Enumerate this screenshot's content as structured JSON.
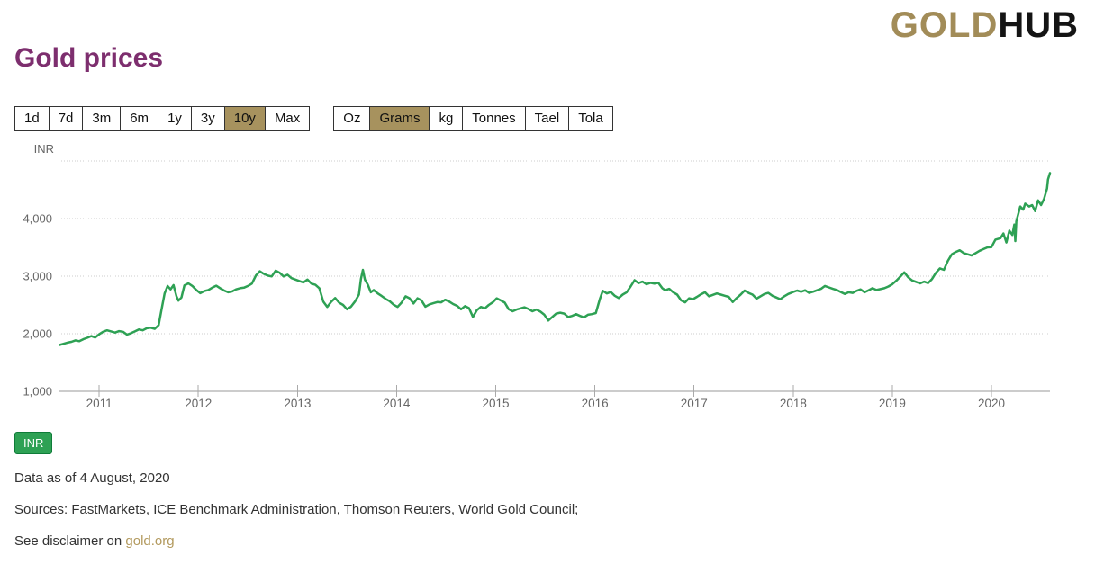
{
  "header": {
    "title": "Gold prices",
    "logo": {
      "gold": "GOLD",
      "hub": "HUB"
    }
  },
  "toolbar": {
    "range_buttons": [
      {
        "label": "1d",
        "selected": false
      },
      {
        "label": "7d",
        "selected": false
      },
      {
        "label": "3m",
        "selected": false
      },
      {
        "label": "6m",
        "selected": false
      },
      {
        "label": "1y",
        "selected": false
      },
      {
        "label": "3y",
        "selected": false
      },
      {
        "label": "10y",
        "selected": true
      },
      {
        "label": "Max",
        "selected": false
      }
    ],
    "unit_buttons": [
      {
        "label": "Oz",
        "selected": false
      },
      {
        "label": "Grams",
        "selected": true
      },
      {
        "label": "kg",
        "selected": false
      },
      {
        "label": "Tonnes",
        "selected": false
      },
      {
        "label": "Tael",
        "selected": false
      },
      {
        "label": "Tola",
        "selected": false
      }
    ]
  },
  "legend": {
    "label": "INR"
  },
  "footer": {
    "data_as_of": "Data as of 4 August, 2020",
    "sources": "Sources: FastMarkets, ICE Benchmark Administration, Thomson Reuters, World Gold Council;",
    "disclaimer_prefix": "See disclaimer on ",
    "disclaimer_link": "gold.org"
  },
  "colors": {
    "title_purple": "#7D2E6E",
    "accent_tan": "#A7925E",
    "logo_gold": "#A28C58",
    "line_green": "#2EA154",
    "badge_green": "#2EA154",
    "link_gold": "#B2995D",
    "axis_text": "#666666",
    "gridline": "#cccccc",
    "axis_line": "#999999"
  },
  "chart_data": {
    "type": "line",
    "title": "Gold prices",
    "currency_label": "INR",
    "unit": "INR per gram",
    "legend_position": "bottom-left",
    "grid": "dotted horizontal",
    "x_axis": {
      "range": [
        2010.59,
        2020.59
      ],
      "ticks": [
        2011,
        2012,
        2013,
        2014,
        2015,
        2016,
        2017,
        2018,
        2019,
        2020
      ]
    },
    "y_axis": {
      "range": [
        1000,
        5375
      ],
      "tick_values": [
        1000,
        2000,
        3000,
        4000
      ],
      "tick_labels": [
        "1,000",
        "2,000",
        "3,000",
        "4,000"
      ],
      "gridline_values": [
        2000,
        3000,
        4000,
        5000
      ]
    },
    "series": [
      {
        "name": "INR",
        "color": "#2EA154",
        "points": [
          [
            2010.6,
            1805
          ],
          [
            2010.64,
            1825
          ],
          [
            2010.68,
            1845
          ],
          [
            2010.72,
            1860
          ],
          [
            2010.76,
            1885
          ],
          [
            2010.8,
            1870
          ],
          [
            2010.84,
            1905
          ],
          [
            2010.88,
            1930
          ],
          [
            2010.92,
            1960
          ],
          [
            2010.96,
            1935
          ],
          [
            2011.0,
            1990
          ],
          [
            2011.04,
            2035
          ],
          [
            2011.08,
            2060
          ],
          [
            2011.12,
            2040
          ],
          [
            2011.16,
            2020
          ],
          [
            2011.2,
            2045
          ],
          [
            2011.24,
            2035
          ],
          [
            2011.28,
            1985
          ],
          [
            2011.32,
            2010
          ],
          [
            2011.36,
            2040
          ],
          [
            2011.4,
            2075
          ],
          [
            2011.44,
            2060
          ],
          [
            2011.48,
            2095
          ],
          [
            2011.52,
            2105
          ],
          [
            2011.56,
            2085
          ],
          [
            2011.6,
            2150
          ],
          [
            2011.63,
            2430
          ],
          [
            2011.66,
            2700
          ],
          [
            2011.69,
            2830
          ],
          [
            2011.72,
            2770
          ],
          [
            2011.75,
            2845
          ],
          [
            2011.78,
            2650
          ],
          [
            2011.8,
            2575
          ],
          [
            2011.83,
            2630
          ],
          [
            2011.86,
            2840
          ],
          [
            2011.9,
            2875
          ],
          [
            2011.94,
            2830
          ],
          [
            2011.98,
            2760
          ],
          [
            2012.02,
            2705
          ],
          [
            2012.06,
            2740
          ],
          [
            2012.1,
            2760
          ],
          [
            2012.14,
            2800
          ],
          [
            2012.18,
            2835
          ],
          [
            2012.22,
            2790
          ],
          [
            2012.26,
            2750
          ],
          [
            2012.3,
            2720
          ],
          [
            2012.34,
            2735
          ],
          [
            2012.38,
            2770
          ],
          [
            2012.42,
            2790
          ],
          [
            2012.46,
            2800
          ],
          [
            2012.5,
            2830
          ],
          [
            2012.54,
            2870
          ],
          [
            2012.58,
            3010
          ],
          [
            2012.62,
            3085
          ],
          [
            2012.66,
            3040
          ],
          [
            2012.7,
            3010
          ],
          [
            2012.74,
            2995
          ],
          [
            2012.78,
            3095
          ],
          [
            2012.82,
            3060
          ],
          [
            2012.86,
            2995
          ],
          [
            2012.9,
            3025
          ],
          [
            2012.94,
            2965
          ],
          [
            2012.98,
            2940
          ],
          [
            2013.02,
            2915
          ],
          [
            2013.06,
            2890
          ],
          [
            2013.1,
            2940
          ],
          [
            2013.14,
            2870
          ],
          [
            2013.18,
            2850
          ],
          [
            2013.22,
            2790
          ],
          [
            2013.26,
            2560
          ],
          [
            2013.3,
            2465
          ],
          [
            2013.34,
            2555
          ],
          [
            2013.38,
            2620
          ],
          [
            2013.42,
            2540
          ],
          [
            2013.46,
            2500
          ],
          [
            2013.5,
            2425
          ],
          [
            2013.54,
            2470
          ],
          [
            2013.58,
            2560
          ],
          [
            2013.62,
            2680
          ],
          [
            2013.64,
            2950
          ],
          [
            2013.66,
            3110
          ],
          [
            2013.68,
            2940
          ],
          [
            2013.71,
            2850
          ],
          [
            2013.74,
            2720
          ],
          [
            2013.77,
            2760
          ],
          [
            2013.81,
            2700
          ],
          [
            2013.85,
            2655
          ],
          [
            2013.89,
            2605
          ],
          [
            2013.93,
            2565
          ],
          [
            2013.97,
            2505
          ],
          [
            2014.01,
            2465
          ],
          [
            2014.05,
            2540
          ],
          [
            2014.09,
            2650
          ],
          [
            2014.13,
            2615
          ],
          [
            2014.17,
            2525
          ],
          [
            2014.21,
            2615
          ],
          [
            2014.25,
            2580
          ],
          [
            2014.29,
            2470
          ],
          [
            2014.33,
            2510
          ],
          [
            2014.37,
            2530
          ],
          [
            2014.41,
            2550
          ],
          [
            2014.45,
            2545
          ],
          [
            2014.49,
            2590
          ],
          [
            2014.53,
            2560
          ],
          [
            2014.57,
            2515
          ],
          [
            2014.61,
            2485
          ],
          [
            2014.65,
            2425
          ],
          [
            2014.69,
            2480
          ],
          [
            2014.73,
            2445
          ],
          [
            2014.77,
            2290
          ],
          [
            2014.81,
            2410
          ],
          [
            2014.85,
            2465
          ],
          [
            2014.89,
            2440
          ],
          [
            2014.93,
            2500
          ],
          [
            2014.97,
            2545
          ],
          [
            2015.01,
            2615
          ],
          [
            2015.05,
            2580
          ],
          [
            2015.09,
            2540
          ],
          [
            2015.13,
            2425
          ],
          [
            2015.17,
            2390
          ],
          [
            2015.21,
            2420
          ],
          [
            2015.25,
            2440
          ],
          [
            2015.29,
            2460
          ],
          [
            2015.33,
            2430
          ],
          [
            2015.37,
            2390
          ],
          [
            2015.41,
            2420
          ],
          [
            2015.45,
            2385
          ],
          [
            2015.49,
            2330
          ],
          [
            2015.53,
            2230
          ],
          [
            2015.57,
            2290
          ],
          [
            2015.61,
            2350
          ],
          [
            2015.65,
            2365
          ],
          [
            2015.69,
            2350
          ],
          [
            2015.73,
            2290
          ],
          [
            2015.77,
            2310
          ],
          [
            2015.81,
            2340
          ],
          [
            2015.85,
            2310
          ],
          [
            2015.89,
            2285
          ],
          [
            2015.93,
            2330
          ],
          [
            2015.97,
            2340
          ],
          [
            2016.01,
            2360
          ],
          [
            2016.05,
            2600
          ],
          [
            2016.08,
            2745
          ],
          [
            2016.12,
            2700
          ],
          [
            2016.16,
            2725
          ],
          [
            2016.2,
            2660
          ],
          [
            2016.24,
            2620
          ],
          [
            2016.28,
            2680
          ],
          [
            2016.32,
            2720
          ],
          [
            2016.36,
            2820
          ],
          [
            2016.4,
            2930
          ],
          [
            2016.44,
            2880
          ],
          [
            2016.48,
            2905
          ],
          [
            2016.52,
            2860
          ],
          [
            2016.56,
            2885
          ],
          [
            2016.6,
            2870
          ],
          [
            2016.64,
            2885
          ],
          [
            2016.68,
            2790
          ],
          [
            2016.71,
            2755
          ],
          [
            2016.75,
            2780
          ],
          [
            2016.79,
            2720
          ],
          [
            2016.83,
            2680
          ],
          [
            2016.87,
            2580
          ],
          [
            2016.91,
            2545
          ],
          [
            2016.95,
            2615
          ],
          [
            2016.99,
            2600
          ],
          [
            2017.03,
            2640
          ],
          [
            2017.07,
            2685
          ],
          [
            2017.11,
            2720
          ],
          [
            2017.15,
            2650
          ],
          [
            2017.19,
            2675
          ],
          [
            2017.23,
            2700
          ],
          [
            2017.27,
            2680
          ],
          [
            2017.31,
            2660
          ],
          [
            2017.35,
            2640
          ],
          [
            2017.39,
            2550
          ],
          [
            2017.43,
            2620
          ],
          [
            2017.47,
            2680
          ],
          [
            2017.51,
            2750
          ],
          [
            2017.55,
            2710
          ],
          [
            2017.59,
            2680
          ],
          [
            2017.63,
            2610
          ],
          [
            2017.67,
            2650
          ],
          [
            2017.71,
            2690
          ],
          [
            2017.75,
            2710
          ],
          [
            2017.79,
            2660
          ],
          [
            2017.83,
            2630
          ],
          [
            2017.87,
            2600
          ],
          [
            2017.91,
            2650
          ],
          [
            2017.95,
            2690
          ],
          [
            2018.0,
            2725
          ],
          [
            2018.04,
            2750
          ],
          [
            2018.08,
            2730
          ],
          [
            2018.12,
            2755
          ],
          [
            2018.16,
            2710
          ],
          [
            2018.2,
            2730
          ],
          [
            2018.24,
            2755
          ],
          [
            2018.28,
            2780
          ],
          [
            2018.32,
            2830
          ],
          [
            2018.36,
            2805
          ],
          [
            2018.4,
            2780
          ],
          [
            2018.44,
            2760
          ],
          [
            2018.48,
            2725
          ],
          [
            2018.52,
            2690
          ],
          [
            2018.56,
            2720
          ],
          [
            2018.6,
            2710
          ],
          [
            2018.64,
            2745
          ],
          [
            2018.68,
            2770
          ],
          [
            2018.72,
            2720
          ],
          [
            2018.76,
            2755
          ],
          [
            2018.8,
            2790
          ],
          [
            2018.84,
            2760
          ],
          [
            2018.88,
            2775
          ],
          [
            2018.92,
            2790
          ],
          [
            2018.96,
            2820
          ],
          [
            2019.0,
            2860
          ],
          [
            2019.04,
            2920
          ],
          [
            2019.08,
            2990
          ],
          [
            2019.12,
            3065
          ],
          [
            2019.16,
            2980
          ],
          [
            2019.2,
            2925
          ],
          [
            2019.24,
            2900
          ],
          [
            2019.28,
            2875
          ],
          [
            2019.32,
            2905
          ],
          [
            2019.36,
            2880
          ],
          [
            2019.4,
            2950
          ],
          [
            2019.44,
            3060
          ],
          [
            2019.48,
            3135
          ],
          [
            2019.52,
            3110
          ],
          [
            2019.56,
            3265
          ],
          [
            2019.6,
            3380
          ],
          [
            2019.64,
            3420
          ],
          [
            2019.68,
            3450
          ],
          [
            2019.72,
            3400
          ],
          [
            2019.76,
            3380
          ],
          [
            2019.8,
            3360
          ],
          [
            2019.84,
            3400
          ],
          [
            2019.88,
            3440
          ],
          [
            2019.92,
            3470
          ],
          [
            2019.96,
            3500
          ],
          [
            2020.0,
            3505
          ],
          [
            2020.04,
            3635
          ],
          [
            2020.09,
            3660
          ],
          [
            2020.12,
            3740
          ],
          [
            2020.15,
            3585
          ],
          [
            2020.18,
            3790
          ],
          [
            2020.21,
            3715
          ],
          [
            2020.23,
            3895
          ],
          [
            2020.24,
            3610
          ],
          [
            2020.25,
            3950
          ],
          [
            2020.29,
            4210
          ],
          [
            2020.32,
            4155
          ],
          [
            2020.34,
            4260
          ],
          [
            2020.38,
            4210
          ],
          [
            2020.41,
            4235
          ],
          [
            2020.44,
            4130
          ],
          [
            2020.47,
            4315
          ],
          [
            2020.5,
            4235
          ],
          [
            2020.53,
            4340
          ],
          [
            2020.56,
            4520
          ],
          [
            2020.57,
            4680
          ],
          [
            2020.59,
            4790
          ]
        ]
      }
    ]
  }
}
